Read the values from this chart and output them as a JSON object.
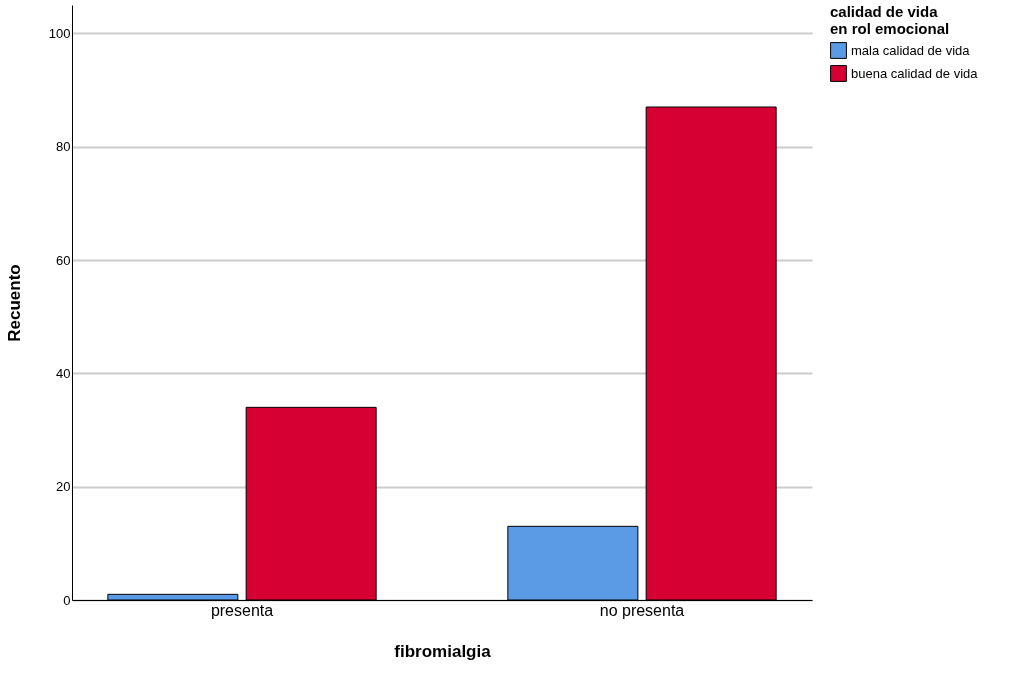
{
  "chart_data": {
    "type": "bar",
    "xlabel": "fibromialgia",
    "ylabel": "Recuento",
    "legend_title": "calidad de vida\nen rol emocional",
    "categories": [
      "presenta",
      "no presenta"
    ],
    "series": [
      {
        "name": "mala calidad de vida",
        "color": "#5b9be6",
        "values": [
          1,
          13
        ]
      },
      {
        "name": "buena calidad de vida",
        "color": "#d60032",
        "values": [
          34,
          87
        ]
      }
    ],
    "ylim": [
      0,
      105
    ],
    "yticks": [
      0,
      20,
      40,
      60,
      80,
      100
    ],
    "grid": "y",
    "legend": "top right"
  }
}
